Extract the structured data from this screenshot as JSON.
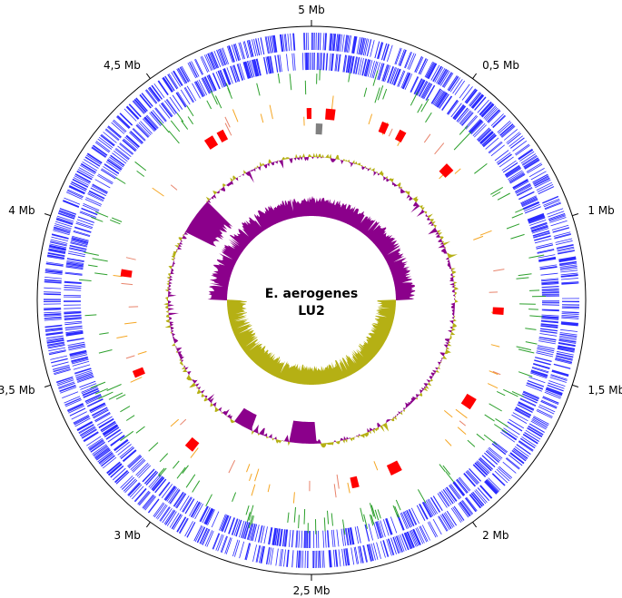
{
  "figure": {
    "organism_line1": "E. aerogenes",
    "organism_line2": "LU2",
    "scale_labels": [
      "5 Mb",
      "0,5 Mb",
      "1 Mb",
      "1,5 Mb",
      "2 Mb",
      "2,5 Mb",
      "3 Mb",
      "3,5 Mb",
      "4 Mb",
      "4,5 Mb"
    ],
    "genome_size_mb": 5.0,
    "colors": {
      "cds": "#2b2bff",
      "rna_features": "#2ca02c",
      "orange_features": "#f5a623",
      "salmon_features": "#e8836b",
      "regions": "#ff0000",
      "gray_region": "#808080",
      "gc_positive": "#b5b014",
      "gc_negative": "#8b008b"
    },
    "tracks": [
      {
        "name": "CDS forward strand",
        "color_key": "cds"
      },
      {
        "name": "CDS reverse strand",
        "color_key": "cds"
      },
      {
        "name": "green features",
        "color_key": "rna_features"
      },
      {
        "name": "orange features",
        "color_key": "orange_features"
      },
      {
        "name": "red regions",
        "color_key": "regions"
      },
      {
        "name": "GC content",
        "color_key": "gc_positive"
      },
      {
        "name": "GC skew",
        "color_key": "gc_negative"
      }
    ],
    "red_regions_mb": [
      [
        0.06,
        0.1
      ],
      [
        0.3,
        0.33
      ],
      [
        0.38,
        0.41
      ],
      [
        0.62,
        0.66
      ],
      [
        1.28,
        1.31
      ],
      [
        1.68,
        1.73
      ],
      [
        2.11,
        2.16
      ],
      [
        2.3,
        2.33
      ],
      [
        3.03,
        3.07
      ],
      [
        3.42,
        3.45
      ],
      [
        3.85,
        3.88
      ],
      [
        4.53,
        4.57
      ],
      [
        4.59,
        4.62
      ],
      [
        4.98,
        5.0
      ]
    ],
    "gray_regions_mb": [
      [
        0.02,
        0.05
      ]
    ]
  }
}
